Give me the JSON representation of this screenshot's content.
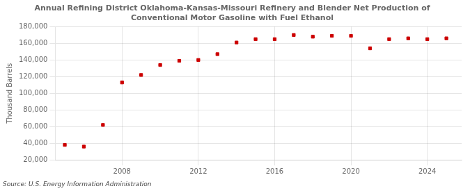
{
  "chart_data": {
    "type": "scatter",
    "title": "Annual Refining District Oklahoma-Kansas-Missouri Refinery and Blender Net Production of\nConventional Motor Gasoline with Fuel Ethanol",
    "ylabel": "Thousand Barrels",
    "annotation": "Source: U.S. Energy Information Administration",
    "x": [
      2005,
      2006,
      2007,
      2008,
      2009,
      2010,
      2011,
      2012,
      2013,
      2014,
      2015,
      2016,
      2017,
      2018,
      2019,
      2020,
      2021,
      2022,
      2023,
      2024,
      2025
    ],
    "values": [
      38000,
      36000,
      62000,
      113000,
      122000,
      134000,
      139000,
      140000,
      147000,
      161000,
      165000,
      165000,
      170000,
      168000,
      169000,
      169000,
      154000,
      165000,
      166000,
      165000,
      166000
    ],
    "color": "#cc0000",
    "marker": "square",
    "xlim": [
      2004.5,
      2025.8
    ],
    "xticks": [
      2008,
      2012,
      2016,
      2020,
      2024
    ],
    "ylim": [
      20000,
      180000
    ],
    "yticks": [
      {
        "value": 20000,
        "label": "20,000"
      },
      {
        "value": 40000,
        "label": "40,000"
      },
      {
        "value": 60000,
        "label": "60,000"
      },
      {
        "value": 80000,
        "label": "80,000"
      },
      {
        "value": 100000,
        "label": "100,000"
      },
      {
        "value": 120000,
        "label": "120,000"
      },
      {
        "value": 140000,
        "label": "140,000"
      },
      {
        "value": 160000,
        "label": "160,000"
      },
      {
        "value": 180000,
        "label": "180,000"
      }
    ],
    "grid": true
  }
}
